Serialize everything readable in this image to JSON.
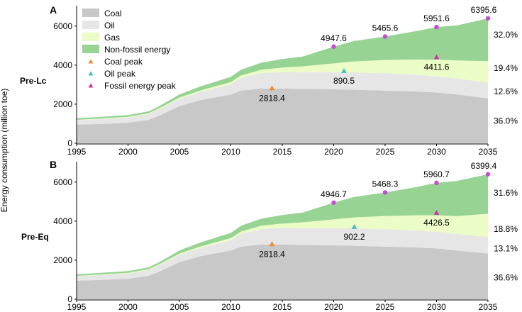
{
  "chart_data": {
    "type": "area",
    "ylabel": "Energy consumption (million toe)",
    "x_ticks": [
      1995,
      2000,
      2005,
      2010,
      2015,
      2020,
      2025,
      2030,
      2035
    ],
    "y_ticks": [
      0,
      2000,
      4000,
      6000
    ],
    "xlim": [
      1995,
      2035
    ],
    "legend": {
      "placement": "top-left",
      "items": [
        {
          "label": "Coal",
          "kind": "area",
          "color": "#c8c8c8"
        },
        {
          "label": "Oil",
          "kind": "area",
          "color": "#e6e6e6"
        },
        {
          "label": "Gas",
          "kind": "area",
          "color": "#ecfcc6"
        },
        {
          "label": "Non-fossil energy",
          "kind": "area",
          "color": "#97d494"
        },
        {
          "label": "Coal peak",
          "kind": "marker",
          "color": "#f28b2b"
        },
        {
          "label": "Oil peak",
          "kind": "marker",
          "color": "#3fbfbf"
        },
        {
          "label": "Fossil energy peak",
          "kind": "marker",
          "color": "#c83a9a"
        }
      ]
    },
    "colors": {
      "coal": "#c8c8c8",
      "oil": "#e6e6e6",
      "gas": "#ecfcc6",
      "nonfossil": "#97d494",
      "total_point": "#c84bd8",
      "coal_peak": "#f28b2b",
      "oil_peak": "#3fbfbf",
      "fossil_peak": "#c83a9a"
    },
    "years": [
      1995,
      1997,
      2000,
      2002,
      2003,
      2005,
      2007,
      2010,
      2011,
      2013,
      2015,
      2017,
      2020,
      2022,
      2025,
      2028,
      2030,
      2032,
      2035
    ],
    "panels": [
      {
        "letter": "A",
        "scenario": "Pre-Lc",
        "ylim": [
          0,
          6900
        ],
        "series": [
          {
            "name": "Coal",
            "values": [
              950,
              980,
              1050,
              1200,
              1400,
              1900,
              2200,
              2500,
              2700,
              2800,
              2800,
              2780,
              2760,
              2740,
              2700,
              2650,
              2600,
              2500,
              2300
            ]
          },
          {
            "name": "Oil",
            "values": [
              230,
              250,
              270,
              300,
              330,
              380,
              420,
              520,
              640,
              800,
              850,
              860,
              880,
              890,
              885,
              860,
              830,
              820,
              800
            ]
          },
          {
            "name": "Gas",
            "values": [
              20,
              25,
              30,
              40,
              50,
              60,
              80,
              110,
              130,
              170,
              230,
              300,
              450,
              560,
              680,
              780,
              850,
              920,
              1100
            ]
          },
          {
            "name": "Non-fossil energy",
            "values": [
              80,
              85,
              90,
              95,
              110,
              160,
              200,
              270,
              300,
              360,
              430,
              500,
              860,
              1050,
              1200,
              1450,
              1670,
              1800,
              2195
            ]
          }
        ],
        "total_labels": [
          {
            "x": 2020,
            "y": 4947.6,
            "text": "4947.6"
          },
          {
            "x": 2025,
            "y": 5465.6,
            "text": "5465.6"
          },
          {
            "x": 2030,
            "y": 5951.6,
            "text": "5951.6"
          },
          {
            "x": 2035,
            "y": 6395.6,
            "text": "6395.6"
          }
        ],
        "peaks": {
          "coal": {
            "x": 2014,
            "y": 2818.4,
            "text": "2818.4"
          },
          "oil": {
            "x": 2021,
            "y": 3700,
            "text": "890.5"
          },
          "fossil": {
            "x": 2030,
            "y": 4411.6,
            "text": "4411.6"
          }
        },
        "shares": [
          {
            "y": 5550,
            "text": "32.0%"
          },
          {
            "y": 3850,
            "text": "19.4%"
          },
          {
            "y": 2650,
            "text": "12.6%"
          },
          {
            "y": 1150,
            "text": "36.0%"
          }
        ]
      },
      {
        "letter": "B",
        "scenario": "Pre-Eq",
        "ylim": [
          0,
          6900
        ],
        "series": [
          {
            "name": "Coal",
            "values": [
              950,
              980,
              1050,
              1200,
              1400,
              1900,
              2200,
              2500,
              2700,
              2800,
              2800,
              2780,
              2760,
              2740,
              2700,
              2650,
              2600,
              2500,
              2340
            ]
          },
          {
            "name": "Oil",
            "values": [
              230,
              250,
              270,
              300,
              330,
              380,
              420,
              520,
              640,
              800,
              850,
              860,
              880,
              890,
              885,
              870,
              850,
              840,
              840
            ]
          },
          {
            "name": "Gas",
            "values": [
              20,
              25,
              30,
              40,
              50,
              60,
              80,
              110,
              130,
              170,
              230,
              300,
              450,
              560,
              680,
              780,
              850,
              920,
              1200
            ]
          },
          {
            "name": "Non-fossil energy",
            "values": [
              80,
              85,
              90,
              95,
              110,
              160,
              200,
              270,
              300,
              360,
              430,
              500,
              860,
              1050,
              1200,
              1440,
              1660,
              1800,
              2020
            ]
          }
        ],
        "total_labels": [
          {
            "x": 2020,
            "y": 4946.7,
            "text": "4946.7"
          },
          {
            "x": 2025,
            "y": 5468.3,
            "text": "5468.3"
          },
          {
            "x": 2030,
            "y": 5960.7,
            "text": "5960.7"
          },
          {
            "x": 2035,
            "y": 6399.4,
            "text": "6399.4"
          }
        ],
        "peaks": {
          "coal": {
            "x": 2014,
            "y": 2818.4,
            "text": "2818.4"
          },
          "oil": {
            "x": 2022,
            "y": 3700,
            "text": "902.2"
          },
          "fossil": {
            "x": 2030,
            "y": 4426.5,
            "text": "4426.5"
          }
        },
        "shares": [
          {
            "y": 5450,
            "text": "31.6%"
          },
          {
            "y": 3600,
            "text": "18.8%"
          },
          {
            "y": 2600,
            "text": "13.1%"
          },
          {
            "y": 1100,
            "text": "36.6%"
          }
        ]
      }
    ]
  }
}
